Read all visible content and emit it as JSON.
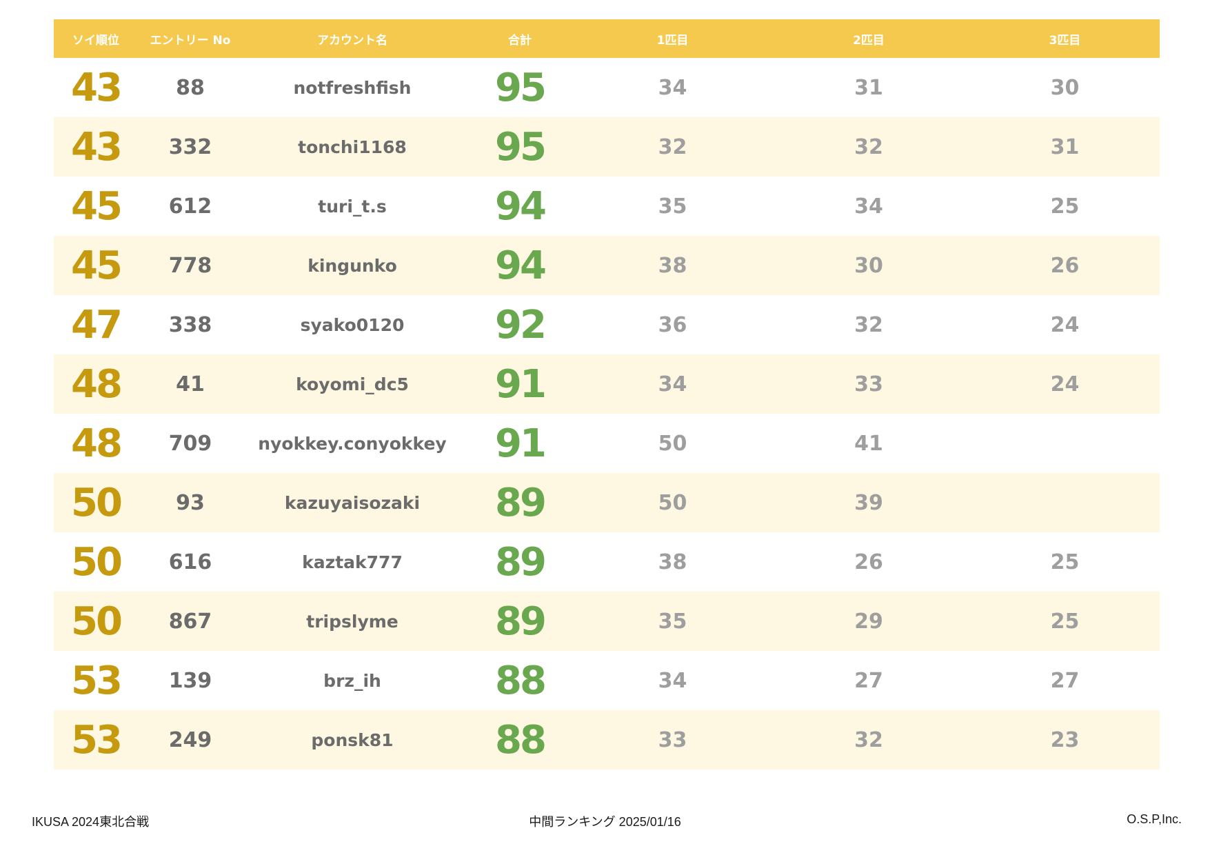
{
  "table": {
    "headers": {
      "rank": "ソイ順位",
      "entry_no": "エントリー No",
      "account": "アカウント名",
      "total": "合計",
      "fish1": "1匹目",
      "fish2": "2匹目",
      "fish3": "3匹目"
    },
    "rows": [
      {
        "rank": "43",
        "entry_no": "88",
        "account": "notfreshfish",
        "total": "95",
        "fish1": "34",
        "fish2": "31",
        "fish3": "30"
      },
      {
        "rank": "43",
        "entry_no": "332",
        "account": "tonchi1168",
        "total": "95",
        "fish1": "32",
        "fish2": "32",
        "fish3": "31"
      },
      {
        "rank": "45",
        "entry_no": "612",
        "account": "turi_t.s",
        "total": "94",
        "fish1": "35",
        "fish2": "34",
        "fish3": "25"
      },
      {
        "rank": "45",
        "entry_no": "778",
        "account": "kingunko",
        "total": "94",
        "fish1": "38",
        "fish2": "30",
        "fish3": "26"
      },
      {
        "rank": "47",
        "entry_no": "338",
        "account": "syako0120",
        "total": "92",
        "fish1": "36",
        "fish2": "32",
        "fish3": "24"
      },
      {
        "rank": "48",
        "entry_no": "41",
        "account": "koyomi_dc5",
        "total": "91",
        "fish1": "34",
        "fish2": "33",
        "fish3": "24"
      },
      {
        "rank": "48",
        "entry_no": "709",
        "account": "nyokkey.conyokkey",
        "total": "91",
        "fish1": "50",
        "fish2": "41",
        "fish3": ""
      },
      {
        "rank": "50",
        "entry_no": "93",
        "account": "kazuyaisozaki",
        "total": "89",
        "fish1": "50",
        "fish2": "39",
        "fish3": ""
      },
      {
        "rank": "50",
        "entry_no": "616",
        "account": "kaztak777",
        "total": "89",
        "fish1": "38",
        "fish2": "26",
        "fish3": "25"
      },
      {
        "rank": "50",
        "entry_no": "867",
        "account": "tripslyme",
        "total": "89",
        "fish1": "35",
        "fish2": "29",
        "fish3": "25"
      },
      {
        "rank": "53",
        "entry_no": "139",
        "account": "brz_ih",
        "total": "88",
        "fish1": "34",
        "fish2": "27",
        "fish3": "27"
      },
      {
        "rank": "53",
        "entry_no": "249",
        "account": "ponsk81",
        "total": "88",
        "fish1": "33",
        "fish2": "32",
        "fish3": "23"
      }
    ]
  },
  "footer": {
    "left": "IKUSA 2024東北合戦",
    "center": "中間ランキング 2025/01/16",
    "right": "O.S.P,Inc."
  },
  "colors": {
    "header_bg": "#F5C94E",
    "row_alt_bg": "#FEF7E2",
    "rank": "#C59A0E",
    "total": "#6AA84F",
    "entry_account": "#6B6B6B",
    "fish": "#9E9E9E"
  }
}
